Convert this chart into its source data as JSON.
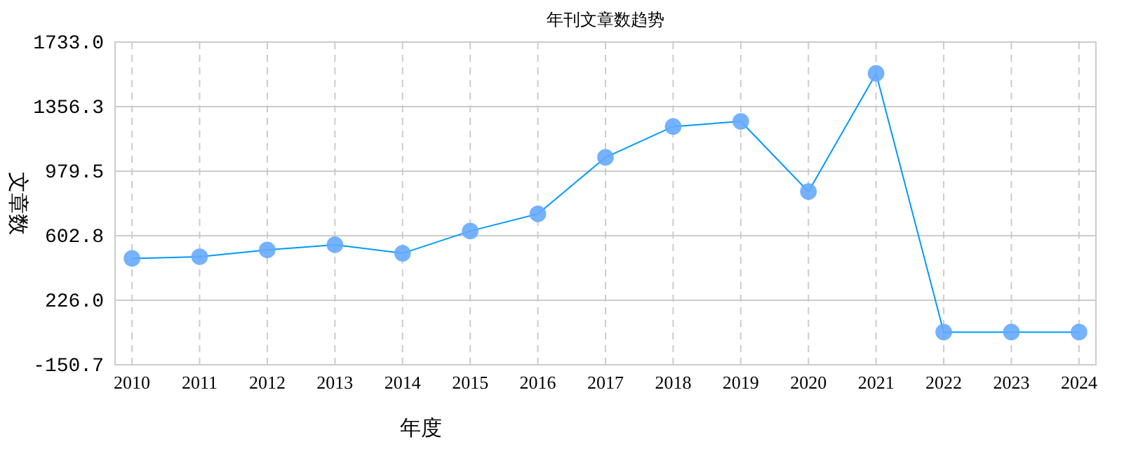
{
  "chart_data": {
    "type": "line",
    "title": "年刊文章数趋势",
    "xlabel": "年度",
    "ylabel": "文章数",
    "categories": [
      "2010",
      "2011",
      "2012",
      "2013",
      "2014",
      "2015",
      "2016",
      "2017",
      "2018",
      "2019",
      "2020",
      "2021",
      "2022",
      "2023",
      "2024"
    ],
    "series": [
      {
        "color": "#0099ff",
        "values": [
          470,
          480,
          520,
          550,
          500,
          630,
          730,
          1060,
          1240,
          1270,
          860,
          1550,
          40,
          40,
          40
        ]
      }
    ],
    "ylim": [
      -150.7,
      1733.0
    ],
    "yticks": [
      {
        "value": -150.7,
        "label": "-150.7"
      },
      {
        "value": 226.0,
        "label": "226.0"
      },
      {
        "value": 602.8,
        "label": "602.8"
      },
      {
        "value": 979.5,
        "label": "979.5"
      },
      {
        "value": 1356.3,
        "label": "1356.3"
      },
      {
        "value": 1733.0,
        "label": "1733.0"
      }
    ],
    "grid": true,
    "marker": "circle"
  }
}
